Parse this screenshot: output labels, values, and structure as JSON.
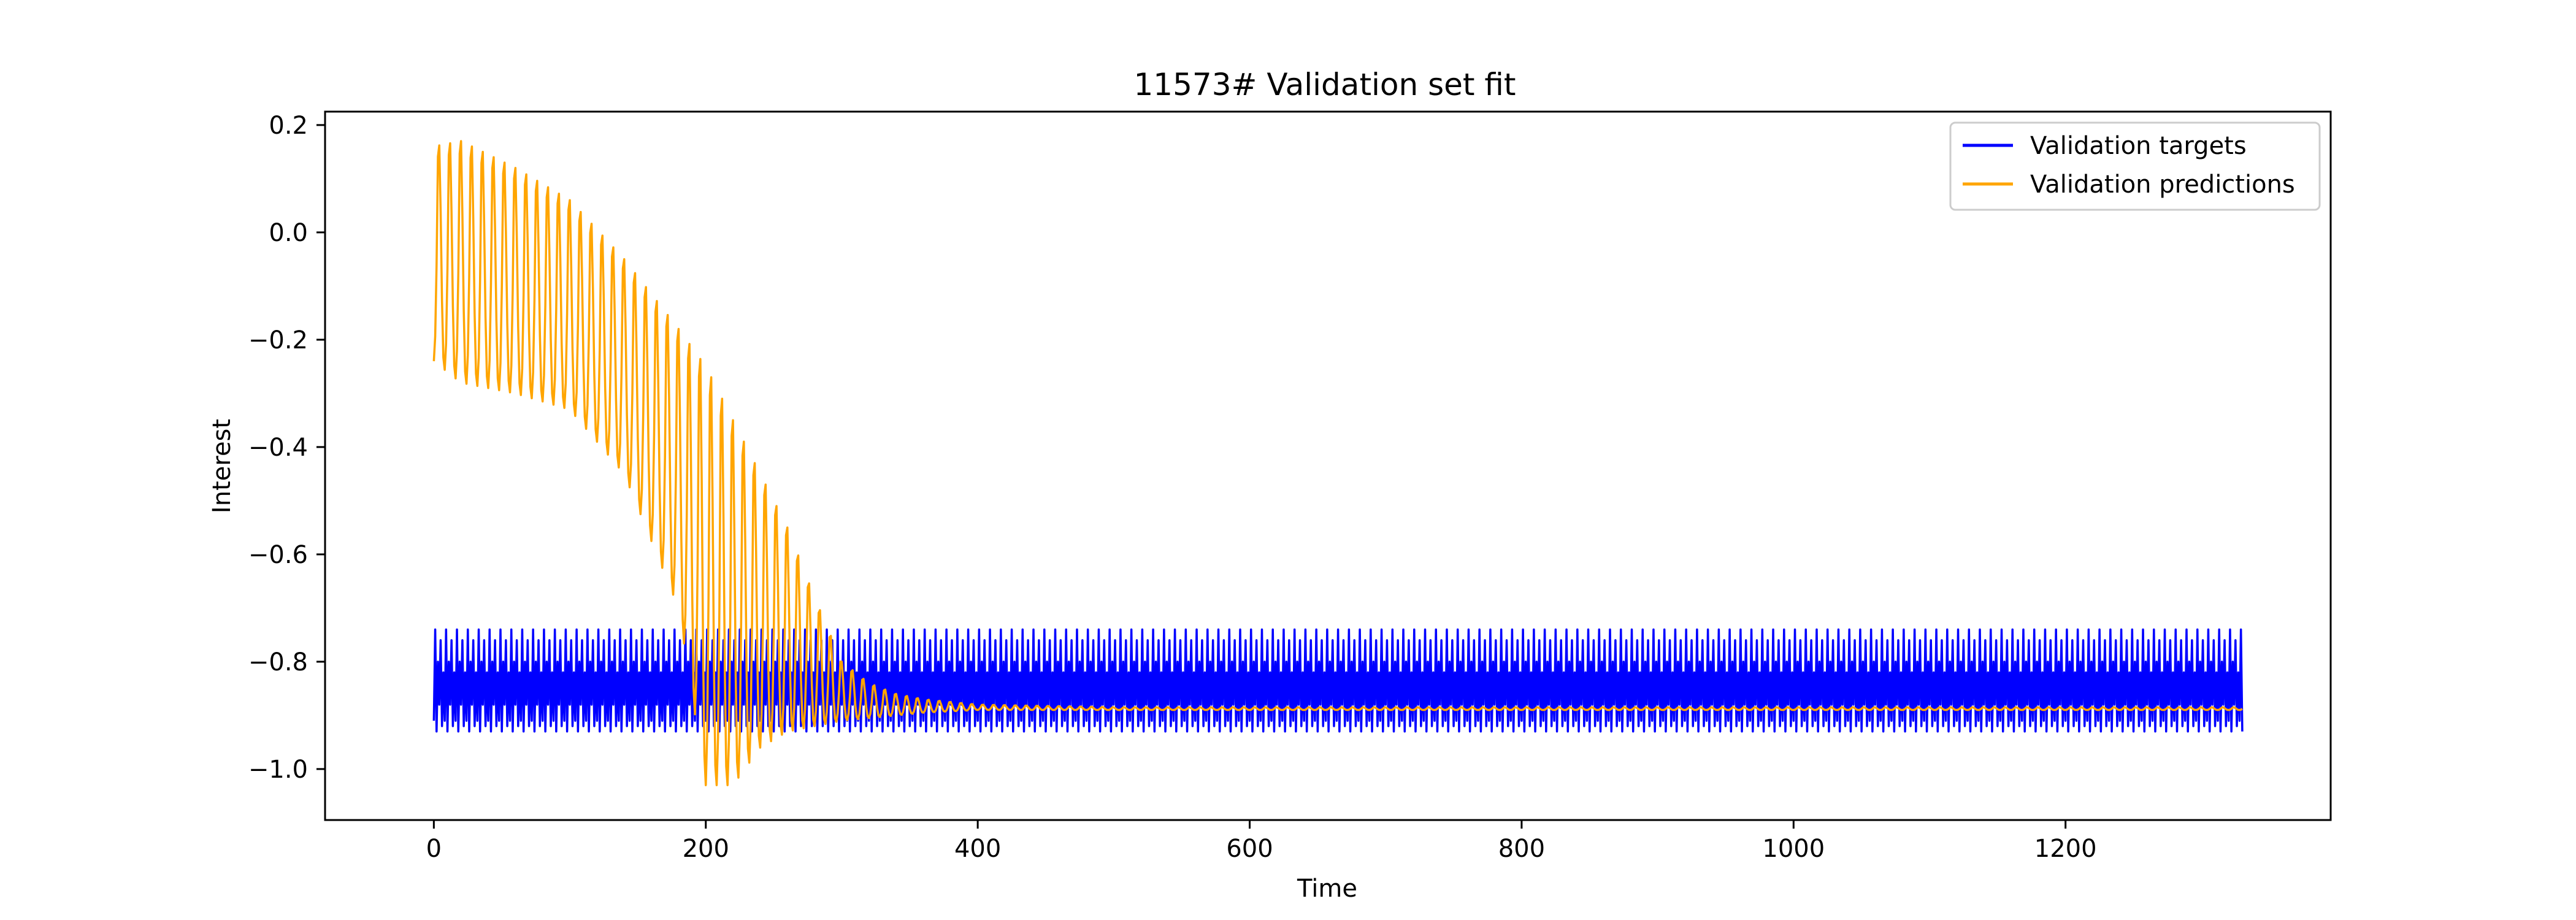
{
  "chart_data": {
    "type": "line",
    "title": "11573# Validation set fit",
    "xlabel": "Time",
    "ylabel": "Interest",
    "xlim": [
      -80,
      1395
    ],
    "ylim": [
      -1.095,
      0.225
    ],
    "x_ticks": [
      0,
      200,
      400,
      600,
      800,
      1000,
      1200
    ],
    "x_tick_labels": [
      "0",
      "200",
      "400",
      "600",
      "800",
      "1000",
      "1200"
    ],
    "y_ticks": [
      0.2,
      0.0,
      -0.2,
      -0.4,
      -0.6,
      -0.8,
      -1.0
    ],
    "y_tick_labels": [
      "0.2",
      "0.0",
      "−0.2",
      "−0.4",
      "−0.6",
      "−0.8",
      "−1.0"
    ],
    "grid": false,
    "legend": {
      "position": "top-right",
      "entries": [
        "Validation targets",
        "Validation predictions"
      ]
    },
    "series": [
      {
        "name": "Validation targets",
        "color": "#0000ff",
        "description": "periodic oscillation with period ~8 steps",
        "x_range": [
          0,
          1330
        ],
        "period": 8,
        "cycle_values": [
          -0.91,
          -0.74,
          -0.93,
          -0.8,
          -0.88,
          -0.76,
          -0.92,
          -0.82
        ]
      },
      {
        "name": "Validation predictions",
        "color": "#ffa500",
        "x_range": [
          0,
          1330
        ],
        "period": 8,
        "envelope_x": [
          0,
          20,
          60,
          100,
          140,
          180,
          200,
          220,
          240,
          260,
          280,
          300,
          320,
          340,
          360,
          400,
          500,
          1330
        ],
        "envelope_upper": [
          0.16,
          0.17,
          0.12,
          0.06,
          -0.05,
          -0.18,
          -0.25,
          -0.35,
          -0.45,
          -0.55,
          -0.68,
          -0.8,
          -0.84,
          -0.86,
          -0.87,
          -0.88,
          -0.885,
          -0.885
        ],
        "envelope_lower": [
          -0.24,
          -0.28,
          -0.3,
          -0.33,
          -0.45,
          -0.7,
          -1.03,
          -1.03,
          -0.96,
          -0.93,
          -0.92,
          -0.91,
          -0.905,
          -0.9,
          -0.895,
          -0.89,
          -0.89,
          -0.89
        ]
      }
    ]
  }
}
